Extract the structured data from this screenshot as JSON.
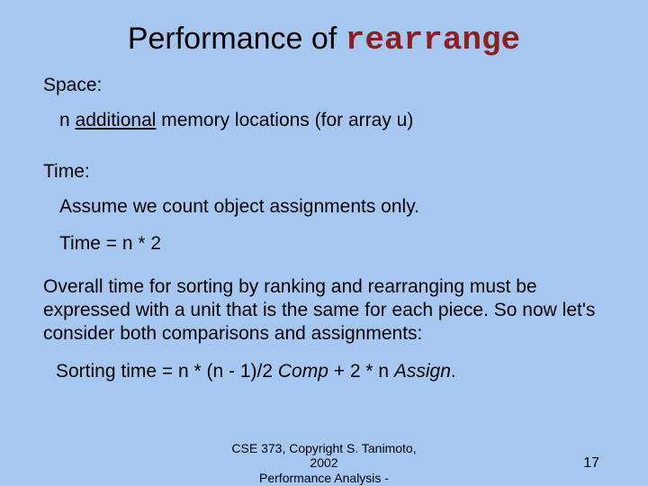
{
  "colors": {
    "background": "#a6c8f0",
    "title_text": "#000000",
    "code_text": "#8b2020",
    "body_text": "#000000"
  },
  "typography": {
    "title_fontsize": 34,
    "code_fontsize": 36,
    "body_fontsize": 21,
    "footer_fontsize": 14,
    "pagenum_fontsize": 16,
    "body_font": "Arial",
    "code_font": "Courier New"
  },
  "title": {
    "prefix": "Performance of ",
    "code": "rearrange"
  },
  "space": {
    "label": "Space:",
    "line_pre": "n ",
    "line_underlined": "additional",
    "line_post": " memory locations (for array u)"
  },
  "time": {
    "label": "Time:",
    "line1": "Assume we count object assignments only.",
    "line2": "Time = n * 2"
  },
  "overall": "Overall time for sorting by ranking and rearranging must be expressed with a unit that is the same for each piece.  So now let's consider both comparisons and assignments:",
  "sorting": {
    "pre": "Sorting time =  n * (n - 1)/2 ",
    "comp": "Comp",
    "mid": " + 2 * n ",
    "assign": "Assign",
    "post": "."
  },
  "footer": {
    "line1": "CSE 373,  Copyright S. Tanimoto,",
    "line2": "2002",
    "line3": "Performance Analysis -"
  },
  "page_number": "17"
}
